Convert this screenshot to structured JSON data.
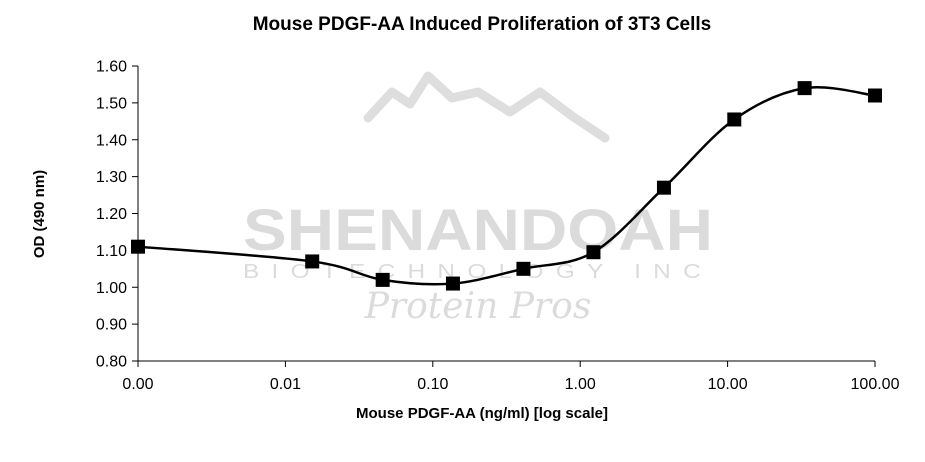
{
  "chart_data": {
    "type": "line",
    "title": "Mouse PDGF-AA Induced Proliferation of 3T3 Cells",
    "xlabel": "Mouse PDGF-AA (ng/ml) [log scale]",
    "ylabel": "OD (490 nm)",
    "x_scale": "log",
    "x_ticks": [
      0.001,
      0.01,
      0.1,
      1,
      10,
      100
    ],
    "x_tick_labels": [
      "0.00",
      "0.01",
      "0.10",
      "1.00",
      "10.00",
      "100.00"
    ],
    "ylim": [
      0.8,
      1.6
    ],
    "y_ticks": [
      0.8,
      0.9,
      1.0,
      1.1,
      1.2,
      1.3,
      1.4,
      1.5,
      1.6
    ],
    "y_tick_labels": [
      "0.80",
      "0.90",
      "1.00",
      "1.10",
      "1.20",
      "1.30",
      "1.40",
      "1.50",
      "1.60"
    ],
    "grid": false,
    "legend": "none",
    "series": [
      {
        "marker": "square",
        "color": "#000000",
        "x": [
          0.001,
          0.0152,
          0.0457,
          0.137,
          0.412,
          1.23,
          3.7,
          11.1,
          33.3,
          100
        ],
        "y": [
          1.11,
          1.07,
          1.02,
          1.01,
          1.05,
          1.095,
          1.27,
          1.455,
          1.54,
          1.52
        ]
      }
    ]
  },
  "watermark": {
    "company": "SHENANDOAH",
    "subtitle": "BIOTECHNOLOGY INC",
    "tagline": "Protein Pros"
  }
}
